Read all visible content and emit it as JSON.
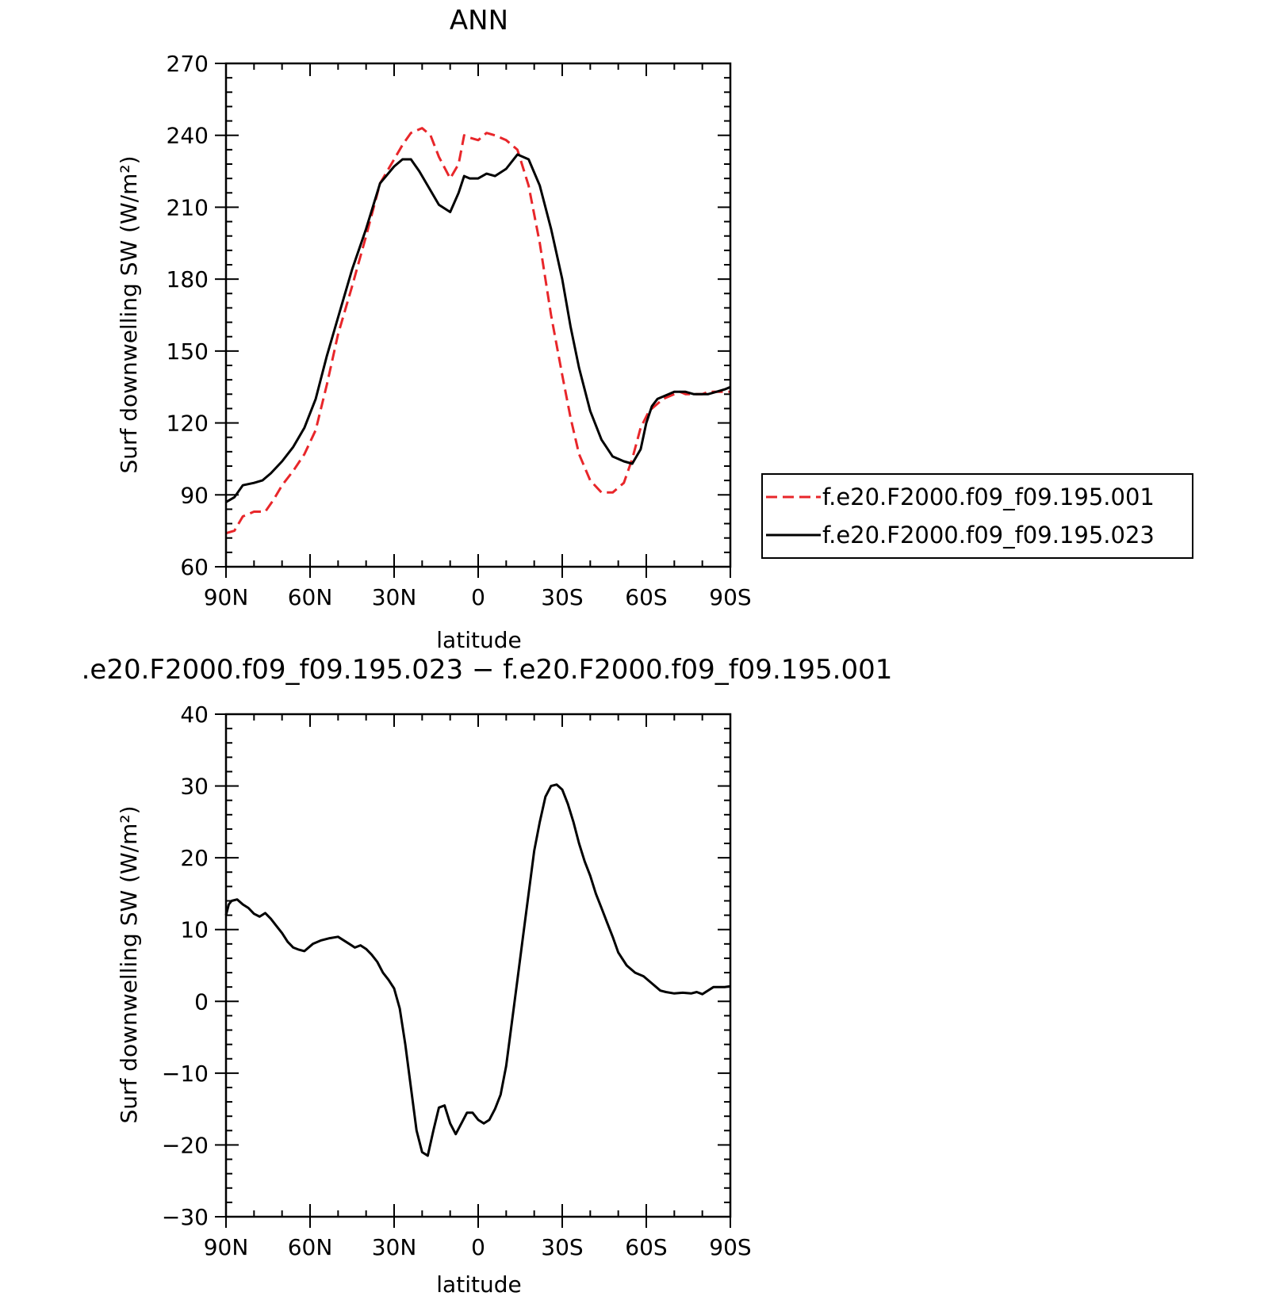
{
  "chart_data": [
    {
      "type": "line",
      "title": "ANN",
      "xlabel": "latitude",
      "ylabel": "Surf downwelling SW (W/m²)",
      "xlim": [
        -90,
        90
      ],
      "x_direction": "descending (90N on left, 90S on right)",
      "ylim": [
        60,
        270
      ],
      "xticks": [
        {
          "value": 90,
          "label": "90N"
        },
        {
          "value": 60,
          "label": "60N"
        },
        {
          "value": 30,
          "label": "30N"
        },
        {
          "value": 0,
          "label": "0"
        },
        {
          "value": -30,
          "label": "30S"
        },
        {
          "value": -60,
          "label": "60S"
        },
        {
          "value": -90,
          "label": "90S"
        }
      ],
      "yticks": [
        {
          "value": 60,
          "label": "60"
        },
        {
          "value": 90,
          "label": "90"
        },
        {
          "value": 120,
          "label": "120"
        },
        {
          "value": 150,
          "label": "150"
        },
        {
          "value": 180,
          "label": "180"
        },
        {
          "value": 210,
          "label": "210"
        },
        {
          "value": 240,
          "label": "240"
        },
        {
          "value": 270,
          "label": "270"
        }
      ],
      "grid": false,
      "legend": {
        "placement": "right",
        "entries": [
          "f.e20.F2000.f09_f09.195.001",
          "f.e20.F2000.f09_f09.195.023"
        ]
      },
      "series": [
        {
          "name": "f.e20.F2000.f09_f09.195.001",
          "color": "#e8262a",
          "dash": "dashed",
          "x": [
            90,
            87,
            84,
            80,
            76,
            73,
            70,
            66,
            62,
            58,
            54,
            50,
            45,
            40,
            35,
            30,
            27,
            24,
            20,
            17,
            14,
            10,
            7,
            5,
            3,
            0,
            -3,
            -6,
            -10,
            -14,
            -18,
            -22,
            -26,
            -30,
            -33,
            -36,
            -40,
            -44,
            -48,
            -52,
            -55,
            -58,
            -61,
            -64,
            -66,
            -68,
            -70,
            -72,
            -74,
            -77,
            -80,
            -82,
            -85,
            -88,
            -90
          ],
          "y": [
            74,
            75,
            81,
            83,
            83,
            88,
            94,
            100,
            107,
            117,
            136,
            157,
            177,
            198,
            220,
            230,
            236,
            241,
            243,
            240,
            231,
            222,
            228,
            240,
            239,
            238,
            241,
            240,
            238,
            234,
            219,
            195,
            165,
            140,
            122,
            107,
            96,
            91,
            91,
            95,
            105,
            118,
            125,
            128,
            130,
            131,
            132,
            133,
            132,
            132,
            132,
            133,
            133,
            133,
            133
          ]
        },
        {
          "name": "f.e20.F2000.f09_f09.195.023",
          "color": "#000000",
          "dash": "solid",
          "x": [
            90,
            87,
            84,
            80,
            77,
            74,
            70,
            66,
            62,
            58,
            54,
            50,
            45,
            40,
            35,
            30,
            27,
            24,
            21,
            18,
            14,
            10,
            7,
            5,
            3,
            0,
            -3,
            -6,
            -10,
            -14,
            -18,
            -22,
            -26,
            -30,
            -33,
            -36,
            -40,
            -44,
            -48,
            -52,
            -55,
            -58,
            -60,
            -62,
            -64,
            -66,
            -68,
            -70,
            -72,
            -74,
            -77,
            -80,
            -82,
            -85,
            -88,
            -90
          ],
          "y": [
            87,
            89,
            94,
            95,
            96,
            99,
            104,
            110,
            118,
            130,
            148,
            164,
            184,
            201,
            220,
            227,
            230,
            230,
            225,
            219,
            211,
            208,
            216,
            223,
            222,
            222,
            224,
            223,
            226,
            232,
            230,
            219,
            201,
            180,
            160,
            143,
            125,
            113,
            106,
            104,
            103,
            109,
            120,
            127,
            130,
            131,
            132,
            133,
            133,
            133,
            132,
            132,
            132,
            133,
            134,
            135
          ]
        }
      ]
    },
    {
      "type": "line",
      "title": ".e20.F2000.f09_f09.195.023 − f.e20.F2000.f09_f09.195.001",
      "xlabel": "latitude",
      "ylabel": "Surf downwelling SW (W/m²)",
      "xlim": [
        -90,
        90
      ],
      "x_direction": "descending (90N on left, 90S on right)",
      "ylim": [
        -30,
        40
      ],
      "xticks": [
        {
          "value": 90,
          "label": "90N"
        },
        {
          "value": 60,
          "label": "60N"
        },
        {
          "value": 30,
          "label": "30N"
        },
        {
          "value": 0,
          "label": "0"
        },
        {
          "value": -30,
          "label": "30S"
        },
        {
          "value": -60,
          "label": "60S"
        },
        {
          "value": -90,
          "label": "90S"
        }
      ],
      "yticks": [
        {
          "value": -30,
          "label": "−30"
        },
        {
          "value": -20,
          "label": "−20"
        },
        {
          "value": -10,
          "label": "−10"
        },
        {
          "value": 0,
          "label": "0"
        },
        {
          "value": 10,
          "label": "10"
        },
        {
          "value": 20,
          "label": "20"
        },
        {
          "value": 30,
          "label": "30"
        },
        {
          "value": 40,
          "label": "40"
        }
      ],
      "grid": false,
      "series": [
        {
          "color": "#000000",
          "dash": "solid",
          "x": [
            90,
            89,
            88,
            86,
            84,
            82,
            80,
            78,
            76,
            74,
            72,
            70,
            68,
            66,
            64,
            62,
            59,
            56,
            53,
            50,
            48,
            46,
            44,
            42,
            40,
            38,
            36,
            34,
            32,
            30,
            28,
            26,
            24,
            22,
            20,
            18,
            16,
            14,
            12,
            10,
            8,
            6,
            4,
            2,
            0,
            -2,
            -4,
            -6,
            -8,
            -10,
            -12,
            -14,
            -16,
            -18,
            -20,
            -22,
            -24,
            -26,
            -28,
            -30,
            -32,
            -34,
            -36,
            -38,
            -40,
            -42,
            -44,
            -46,
            -48,
            -50,
            -53,
            -56,
            -59,
            -62,
            -65,
            -67,
            -70,
            -73,
            -76,
            -78,
            -80,
            -82,
            -84,
            -86,
            -88,
            -90
          ],
          "y": [
            12,
            13.5,
            14,
            14.2,
            13.5,
            13,
            12.2,
            11.8,
            12.3,
            11.5,
            10.5,
            9.5,
            8.3,
            7.5,
            7.2,
            7,
            8,
            8.5,
            8.8,
            9,
            8.5,
            8,
            7.5,
            7.8,
            7.3,
            6.5,
            5.5,
            4,
            3,
            1.8,
            -1,
            -6,
            -12,
            -18,
            -21,
            -21.5,
            -18,
            -14.8,
            -14.5,
            -17,
            -18.5,
            -17,
            -15.5,
            -15.5,
            -16.5,
            -17,
            -16.5,
            -15,
            -13,
            -9,
            -3,
            3,
            9,
            15,
            21,
            25,
            28.5,
            30,
            30.2,
            29.5,
            27.5,
            25,
            22,
            19.5,
            17.5,
            15,
            13,
            11,
            9,
            6.8,
            5,
            4,
            3.5,
            2.5,
            1.5,
            1.3,
            1.1,
            1.2,
            1.1,
            1.3,
            1.0,
            1.5,
            2.0,
            2.0,
            2.0,
            2.1
          ]
        }
      ]
    }
  ]
}
